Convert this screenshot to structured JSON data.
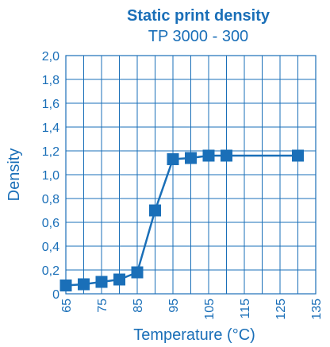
{
  "chart_data": {
    "type": "line",
    "title": "Static print density",
    "subtitle": "TP 3000 - 300",
    "xlabel": "Temperature  (°C)",
    "ylabel": "Density",
    "xlim": [
      65,
      135
    ],
    "ylim": [
      0,
      2.0
    ],
    "x_ticks": [
      "65",
      "75",
      "85",
      "95",
      "105",
      "115",
      "125",
      "135"
    ],
    "x_tick_values": [
      65,
      70,
      75,
      80,
      85,
      90,
      95,
      100,
      105,
      110,
      115,
      120,
      125,
      130,
      135
    ],
    "y_ticks": [
      "0",
      "0,2",
      "0,4",
      "0,6",
      "0,8",
      "1,0",
      "1,2",
      "1,4",
      "1,6",
      "1,8",
      "2,0"
    ],
    "y_tick_values": [
      0,
      0.2,
      0.4,
      0.6,
      0.8,
      1.0,
      1.2,
      1.4,
      1.6,
      1.8,
      2.0
    ],
    "grid": true,
    "colors": {
      "primary": "#1a6fb8"
    },
    "series": [
      {
        "x": [
          65,
          70,
          75,
          80,
          85,
          90,
          95,
          100,
          105,
          110,
          130
        ],
        "y": [
          0.07,
          0.08,
          0.1,
          0.12,
          0.18,
          0.7,
          1.13,
          1.14,
          1.16,
          1.16,
          1.16
        ]
      }
    ]
  }
}
